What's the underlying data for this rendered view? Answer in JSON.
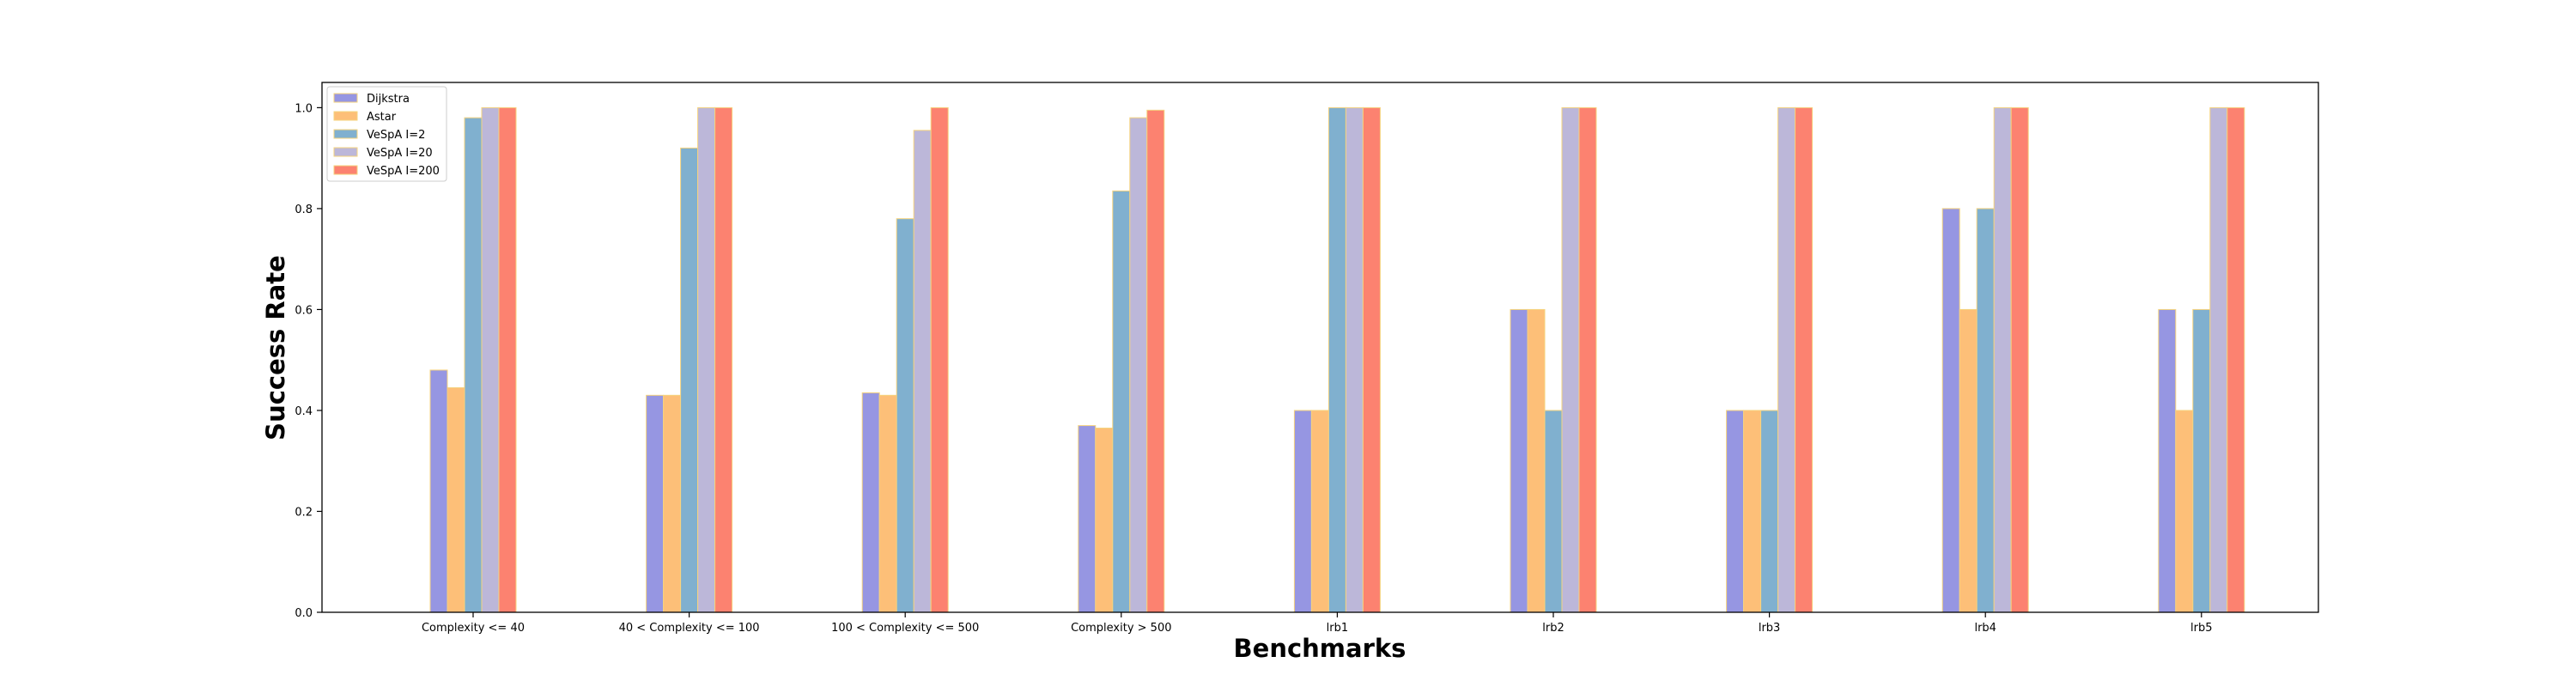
{
  "chart_data": {
    "type": "bar",
    "title": "",
    "xlabel": "Benchmarks",
    "ylabel": "Success Rate",
    "ylim": [
      0,
      1.05
    ],
    "yticks": [
      "0.0",
      "0.2",
      "0.4",
      "0.6",
      "0.8",
      "1.0"
    ],
    "grid": false,
    "legend_position": "top-left",
    "categories": [
      "Complexity <= 40",
      "40 < Complexity <= 100",
      "100 < Complexity <= 500",
      "Complexity > 500",
      "lrb1",
      "lrb2",
      "lrb3",
      "lrb4",
      "lrb5"
    ],
    "series": [
      {
        "name": "Dijkstra",
        "color": "#9696e2",
        "values": [
          0.48,
          0.43,
          0.435,
          0.37,
          0.4,
          0.6,
          0.4,
          0.8,
          0.6
        ]
      },
      {
        "name": "Astar",
        "color": "#fdbf78",
        "values": [
          0.445,
          0.43,
          0.43,
          0.365,
          0.4,
          0.6,
          0.4,
          0.6,
          0.4
        ]
      },
      {
        "name": "VeSpA I=2",
        "color": "#80b0cf",
        "values": [
          0.98,
          0.92,
          0.78,
          0.835,
          1.0,
          0.4,
          0.4,
          0.8,
          0.6
        ]
      },
      {
        "name": "VeSpA I=20",
        "color": "#bcb7d9",
        "values": [
          1.0,
          1.0,
          0.955,
          0.98,
          1.0,
          1.0,
          1.0,
          1.0,
          1.0
        ]
      },
      {
        "name": "VeSpA I=200",
        "color": "#fc8270",
        "values": [
          1.0,
          1.0,
          1.0,
          0.995,
          1.0,
          1.0,
          1.0,
          1.0,
          1.0
        ]
      }
    ],
    "bar_edge_color": "#f5d37e"
  }
}
